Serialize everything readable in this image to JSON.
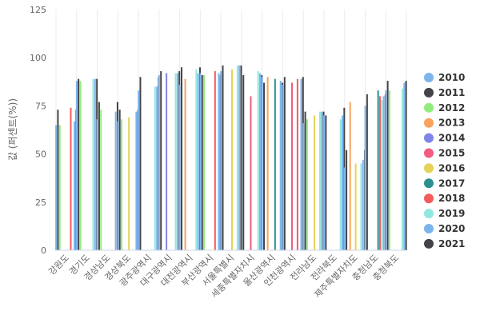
{
  "chart_data": {
    "type": "bar",
    "title": "",
    "xlabel": "",
    "ylabel": "값 (퍼센트(%))",
    "ylim": [
      0,
      125
    ],
    "yticks": [
      0,
      25,
      50,
      75,
      100,
      125
    ],
    "grid": "vertical-per-category",
    "legend_position": "right",
    "categories": [
      "강원도",
      "경기도",
      "경상남도",
      "경상북도",
      "광주광역시",
      "대구광역시",
      "대전광역시",
      "부산광역시",
      "서울특별시",
      "세종특별자치시",
      "울산광역시",
      "인천광역시",
      "전라남도",
      "전라북도",
      "제주특별자치도",
      "충청남도",
      "충청북도"
    ],
    "series": [
      {
        "name": "2010",
        "color": "#7cb5ec",
        "values": [
          65,
          88,
          68,
          67,
          83,
          91,
          86,
          92,
          93,
          null,
          90,
          86,
          66,
          70,
          43,
          75,
          83
        ]
      },
      {
        "name": "2011",
        "color": "#434348",
        "values": [
          73,
          89,
          77,
          73,
          90,
          93,
          95,
          91,
          96,
          91,
          87,
          90,
          72,
          70,
          52,
          81,
          88
        ]
      },
      {
        "name": "2012",
        "color": "#90ed7d",
        "values": [
          65,
          88,
          73,
          68,
          null,
          null,
          null,
          91,
          null,
          null,
          null,
          null,
          68,
          null,
          null,
          null,
          83
        ]
      },
      {
        "name": "2013",
        "color": "#f7a35c",
        "values": [
          null,
          null,
          null,
          null,
          null,
          null,
          89,
          null,
          null,
          null,
          90,
          null,
          null,
          null,
          77,
          null,
          null
        ]
      },
      {
        "name": "2014",
        "color": "#8085e9",
        "values": [
          null,
          null,
          null,
          null,
          null,
          92,
          null,
          null,
          null,
          null,
          null,
          null,
          null,
          null,
          null,
          null,
          null
        ]
      },
      {
        "name": "2015",
        "color": "#f15c80",
        "values": [
          null,
          null,
          null,
          null,
          null,
          null,
          null,
          null,
          null,
          80,
          null,
          87,
          null,
          null,
          null,
          null,
          null
        ]
      },
      {
        "name": "2016",
        "color": "#e4d354",
        "values": [
          null,
          null,
          null,
          69,
          null,
          null,
          null,
          null,
          94,
          null,
          null,
          null,
          70,
          null,
          45,
          null,
          null
        ]
      },
      {
        "name": "2017",
        "color": "#2b908f",
        "values": [
          null,
          null,
          null,
          null,
          null,
          null,
          null,
          null,
          null,
          null,
          89,
          null,
          null,
          null,
          null,
          83,
          null
        ]
      },
      {
        "name": "2018",
        "color": "#f45b5b",
        "values": [
          74,
          null,
          null,
          null,
          null,
          null,
          null,
          93,
          null,
          null,
          null,
          89,
          null,
          null,
          null,
          80,
          null
        ]
      },
      {
        "name": "2019",
        "color": "#91e8e1",
        "values": [
          null,
          89,
          null,
          null,
          85,
          92,
          94,
          null,
          96,
          93,
          null,
          null,
          72,
          68,
          45,
          78,
          84
        ]
      },
      {
        "name": "2020",
        "color": "#7cb5ec",
        "values": [
          67,
          89,
          72,
          72,
          85,
          92,
          92,
          92,
          96,
          92,
          88,
          89,
          72,
          70,
          47,
          80,
          87
        ]
      },
      {
        "name": "2021",
        "color": "#434348",
        "values": [
          73,
          89,
          77,
          73,
          90,
          93,
          95,
          91,
          96,
          91,
          87,
          90,
          72,
          74,
          52,
          81,
          88
        ]
      }
    ]
  }
}
